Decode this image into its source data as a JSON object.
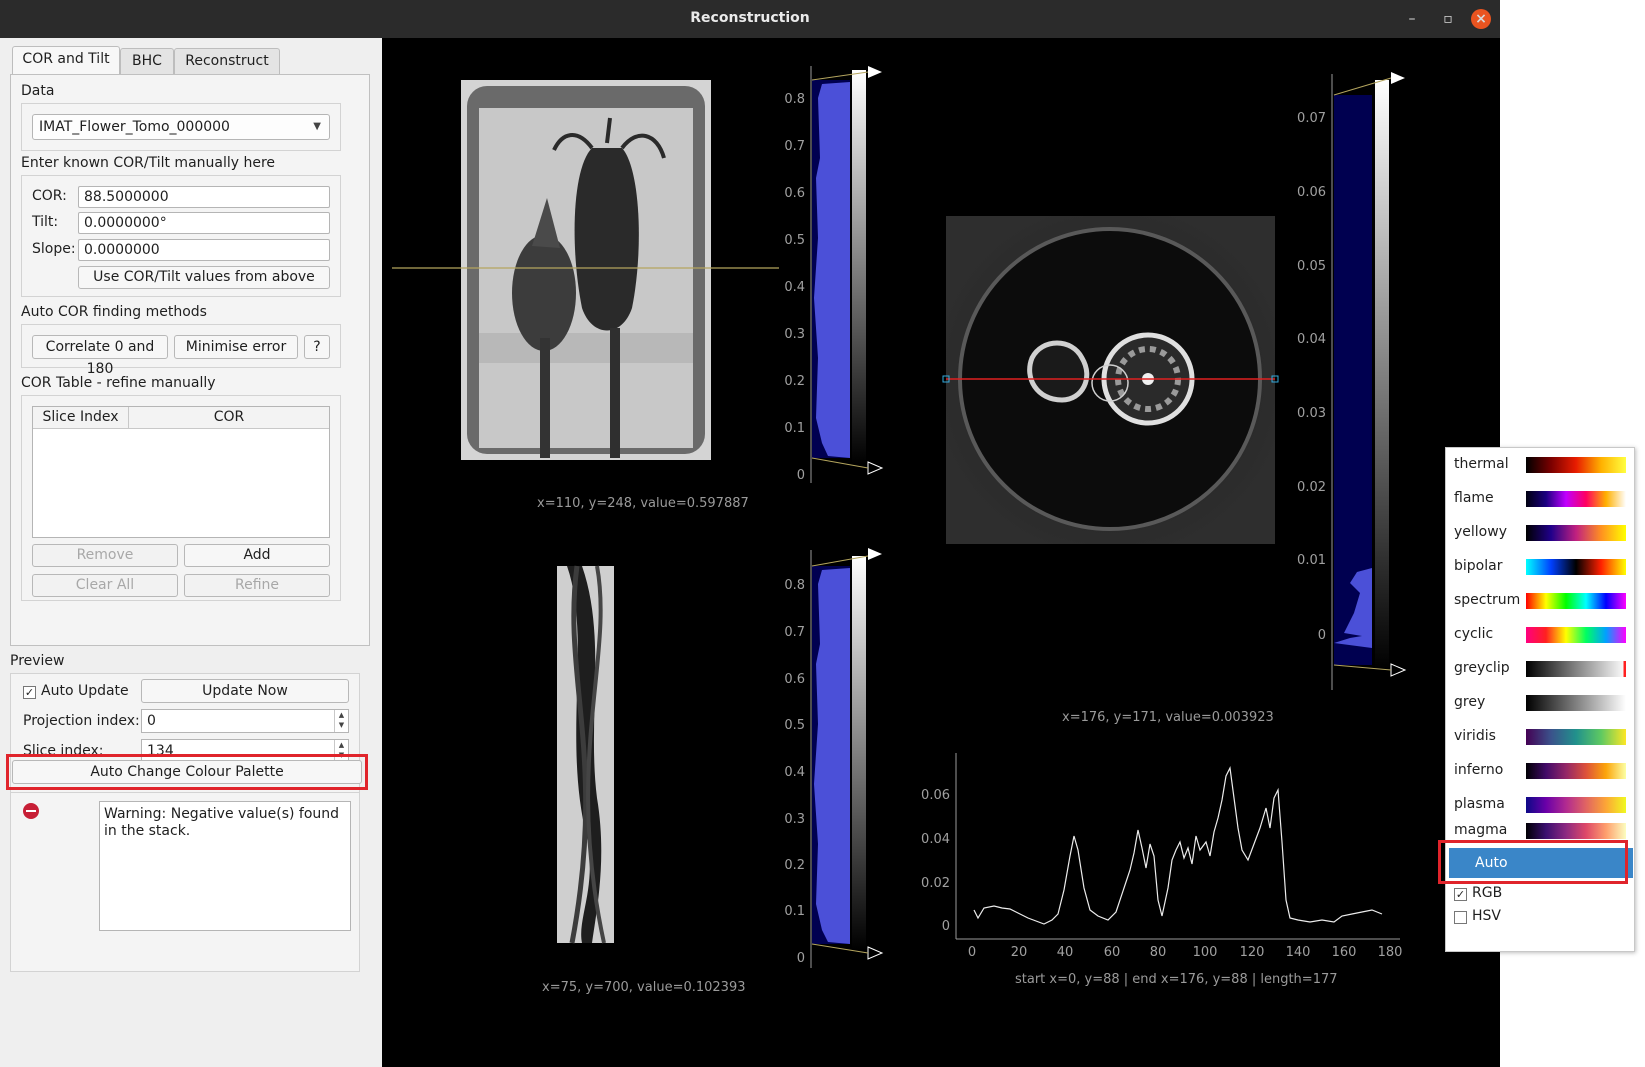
{
  "window": {
    "title": "Reconstruction"
  },
  "tabs": [
    {
      "label": "COR and Tilt",
      "active": true
    },
    {
      "label": "BHC",
      "active": false
    },
    {
      "label": "Reconstruct",
      "active": false
    }
  ],
  "data_group": {
    "label": "Data",
    "dataset": "IMAT_Flower_Tomo_000000"
  },
  "manual": {
    "label": "Enter known COR/Tilt manually here",
    "cor_label": "COR:",
    "cor_value": "88.5000000",
    "tilt_label": "Tilt:",
    "tilt_value": "0.0000000°",
    "slope_label": "Slope:",
    "slope_value": "0.0000000",
    "use_button": "Use COR/Tilt values from above"
  },
  "auto_cor": {
    "label": "Auto COR finding methods",
    "correlate_button": "Correlate 0 and 180",
    "minimise_button": "Minimise error",
    "help_button": "?"
  },
  "cor_table": {
    "label": "COR Table - refine manually",
    "col_slice": "Slice Index",
    "col_cor": "COR",
    "remove_button": "Remove",
    "add_button": "Add",
    "clear_button": "Clear All",
    "refine_button": "Refine"
  },
  "preview": {
    "label": "Preview",
    "auto_update_label": "Auto Update",
    "auto_update_checked": true,
    "update_now_button": "Update Now",
    "projection_label": "Projection index:",
    "projection_value": "0",
    "slice_label": "Slice index:",
    "slice_value": "134",
    "auto_palette_button": "Auto Change Colour Palette"
  },
  "warning": {
    "text": "Warning: Negative value(s) found in the stack."
  },
  "projection_view": {
    "readout": "x=110, y=248, value=0.597887",
    "hist_ticks": [
      "0.8",
      "0.7",
      "0.6",
      "0.5",
      "0.4",
      "0.3",
      "0.2",
      "0.1",
      "0"
    ]
  },
  "sinogram_view": {
    "readout": "x=75, y=700, value=0.102393",
    "hist_ticks": [
      "0.8",
      "0.7",
      "0.6",
      "0.5",
      "0.4",
      "0.3",
      "0.2",
      "0.1",
      "0"
    ]
  },
  "recon_view": {
    "readout": "x=176, y=171, value=0.003923",
    "hist_ticks": [
      "0.07",
      "0.06",
      "0.05",
      "0.04",
      "0.03",
      "0.02",
      "0.01",
      "0"
    ]
  },
  "line_profile": {
    "readout": "start x=0, y=88 | end x=176, y=88 | length=177",
    "y_ticks": [
      "0.06",
      "0.04",
      "0.02",
      "0"
    ],
    "x_ticks": [
      "0",
      "20",
      "40",
      "60",
      "80",
      "100",
      "120",
      "140",
      "160",
      "180"
    ]
  },
  "colour_menu": {
    "items": [
      {
        "name": "thermal",
        "gradient": "linear-gradient(to right,#000000,#7a0000,#e81c00,#ffb000,#ffff40)"
      },
      {
        "name": "flame",
        "gradient": "linear-gradient(to right,#000010,#1a0080,#c000ff,#ff0060,#ffb000,#ffffff)"
      },
      {
        "name": "yellowy",
        "gradient": "linear-gradient(to right,#000000,#20008a,#c02080,#ff9020,#ffff00)"
      },
      {
        "name": "bipolar",
        "gradient": "linear-gradient(to right,#00ffff,#0040ff,#000000,#ff2000,#ffff00)"
      },
      {
        "name": "spectrum",
        "gradient": "linear-gradient(to right,#ff0000,#ffff00,#00ff00,#00ffff,#0000ff,#ff00ff)"
      },
      {
        "name": "cyclic",
        "gradient": "linear-gradient(to right,#ff0080,#ff2020,#ffff00,#00ff60,#00a0ff,#ff00ff)"
      },
      {
        "name": "greyclip",
        "gradient": "linear-gradient(to right,#000000,#7f7f7f,#f8f8f8 97%,#ff2020 98%)"
      },
      {
        "name": "grey",
        "gradient": "linear-gradient(to right,#000000,#ffffff)"
      },
      {
        "name": "viridis",
        "gradient": "linear-gradient(to right,#440154,#3b528b,#21918c,#5ec962,#fde725)"
      },
      {
        "name": "inferno",
        "gradient": "linear-gradient(to right,#000004,#420a68,#932667,#dd513a,#fca50a,#fcffa4)"
      },
      {
        "name": "plasma",
        "gradient": "linear-gradient(to right,#0d0887,#6a00a8,#b12a90,#e16462,#fca636,#f0f921)"
      },
      {
        "name": "magma",
        "gradient": "linear-gradient(to right,#000004,#3b0f70,#8c2981,#de4968,#fe9f6d,#fcfdbf)"
      }
    ],
    "auto_label": "Auto",
    "rgb_label": "RGB",
    "rgb_checked": true,
    "hsv_label": "HSV",
    "hsv_checked": false
  },
  "colors": {
    "highlight": "#e0242b",
    "menu_selected": "#3a86c8",
    "histogram_fill": "#4b50d8",
    "profile_line": "#e02020"
  }
}
